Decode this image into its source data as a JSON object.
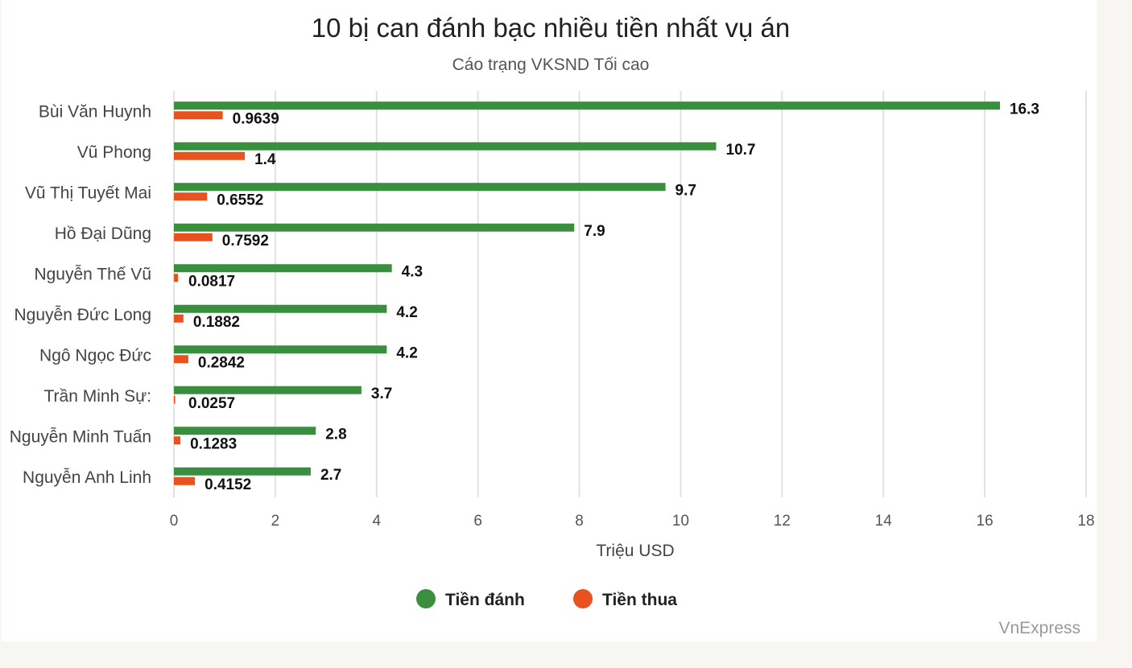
{
  "chart_data": {
    "type": "bar",
    "orientation": "horizontal",
    "title": "10 bị can đánh bạc nhiều tiền nhất vụ án",
    "subtitle": "Cáo trạng VKSND Tối cao",
    "xlabel": "Triệu USD",
    "ylabel": "",
    "xlim": [
      0,
      18
    ],
    "x_ticks": [
      0,
      2,
      4,
      6,
      8,
      10,
      12,
      14,
      16,
      18
    ],
    "grid": "vertical",
    "legend_position": "bottom-center",
    "categories": [
      "Bùi Văn Huynh",
      "Vũ Phong",
      "Vũ Thị Tuyết Mai",
      "Hồ Đại Dũng",
      "Nguyễn Thế Vũ",
      "Nguyễn Đức Long",
      "Ngô Ngọc Đức",
      "Trần Minh Sự:",
      "Nguyễn Minh Tuấn",
      "Nguyễn Anh Linh"
    ],
    "series": [
      {
        "name": "Tiền đánh",
        "color": "#3a8f3f",
        "values": [
          16.3,
          10.7,
          9.7,
          7.9,
          4.3,
          4.2,
          4.2,
          3.7,
          2.8,
          2.7
        ]
      },
      {
        "name": "Tiền thua",
        "color": "#e8521e",
        "values": [
          0.9639,
          1.4,
          0.6552,
          0.7592,
          0.0817,
          0.1882,
          0.2842,
          0.0257,
          0.1283,
          0.4152
        ]
      }
    ]
  },
  "credit": "VnExpress"
}
